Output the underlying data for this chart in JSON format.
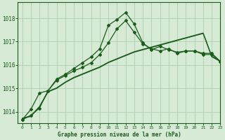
{
  "title": "Graphe pression niveau de la mer (hPa)",
  "background_color": "#d6ead6",
  "grid_color": "#aecfae",
  "line_color": "#1a5c1a",
  "xlim": [
    -0.5,
    23
  ],
  "ylim": [
    1013.5,
    1018.7
  ],
  "yticks": [
    1014,
    1015,
    1016,
    1017,
    1018
  ],
  "xticks": [
    0,
    1,
    2,
    3,
    4,
    5,
    6,
    7,
    8,
    9,
    10,
    11,
    12,
    13,
    14,
    15,
    16,
    17,
    18,
    19,
    20,
    21,
    22,
    23
  ],
  "line1_y": [
    1013.7,
    1013.8,
    1014.2,
    1014.85,
    1015.0,
    1015.25,
    1015.45,
    1015.6,
    1015.75,
    1015.9,
    1016.1,
    1016.25,
    1016.4,
    1016.55,
    1016.65,
    1016.75,
    1016.85,
    1016.95,
    1017.05,
    1017.15,
    1017.25,
    1017.35,
    1016.35,
    1016.15
  ],
  "line2_y": [
    1013.72,
    1013.82,
    1014.22,
    1014.87,
    1015.02,
    1015.27,
    1015.47,
    1015.62,
    1015.77,
    1015.92,
    1016.12,
    1016.27,
    1016.42,
    1016.57,
    1016.67,
    1016.77,
    1016.87,
    1016.97,
    1017.07,
    1017.17,
    1017.27,
    1017.37,
    1016.37,
    1016.17
  ],
  "line3_y": [
    1013.65,
    1014.1,
    1014.8,
    1014.9,
    1015.35,
    1015.55,
    1015.75,
    1015.9,
    1016.1,
    1016.45,
    1016.95,
    1017.55,
    1017.9,
    1017.4,
    1016.9,
    1016.7,
    1016.6,
    1016.7,
    1016.5,
    1016.6,
    1016.6,
    1016.45,
    1016.45,
    1016.15
  ],
  "line4_y": [
    1013.65,
    1013.85,
    1014.15,
    1014.9,
    1015.4,
    1015.6,
    1015.85,
    1016.1,
    1016.35,
    1016.7,
    1017.7,
    1017.95,
    1018.25,
    1017.75,
    1016.95,
    1016.65,
    1016.8,
    1016.65,
    1016.55,
    1016.6,
    1016.6,
    1016.5,
    1016.5,
    1016.15
  ]
}
